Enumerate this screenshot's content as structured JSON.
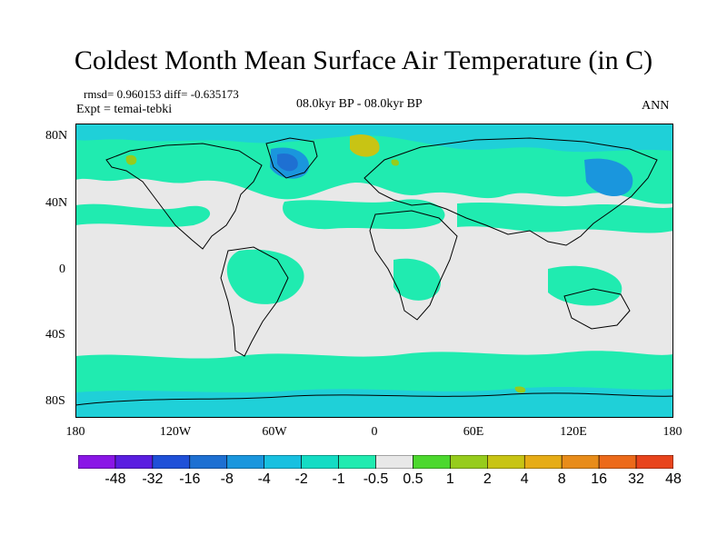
{
  "title": "Coldest Month Mean Surface Air Temperature (in C)",
  "stats": "rmsd= 0.960153 diff= -0.635173",
  "expt": "Expt = temai-tebki",
  "period": "08.0kyr BP - 08.0kyr BP",
  "season": "ANN",
  "lat_labels": [
    "80N",
    "40N",
    "0",
    "40S",
    "80S"
  ],
  "lon_labels": [
    "180",
    "120W",
    "60W",
    "0",
    "60E",
    "120E",
    "180"
  ],
  "colorbar": {
    "labels": [
      "-48",
      "-32",
      "-16",
      "-8",
      "-4",
      "-2",
      "-1",
      "-0.5",
      "0.5",
      "1",
      "2",
      "4",
      "8",
      "16",
      "32",
      "48"
    ],
    "colors": [
      "#8a16e6",
      "#5a1ee0",
      "#1f50d8",
      "#1e70d2",
      "#1a96dd",
      "#18c0e0",
      "#14dcc4",
      "#20ebb0",
      "#e8e8e8",
      "#4cd82e",
      "#96cc1c",
      "#c8c414",
      "#e6ac16",
      "#e88c1a",
      "#ec6a1a",
      "#e8441c"
    ]
  },
  "palette": {
    "neutral": "#e8e8e8",
    "cyan": "#1fd0d8",
    "teal": "#20ebb0",
    "blue": "#1a96dd",
    "darkblue": "#1e70d2",
    "yellow": "#c8c414",
    "lightgreen": "#96cc1c"
  }
}
